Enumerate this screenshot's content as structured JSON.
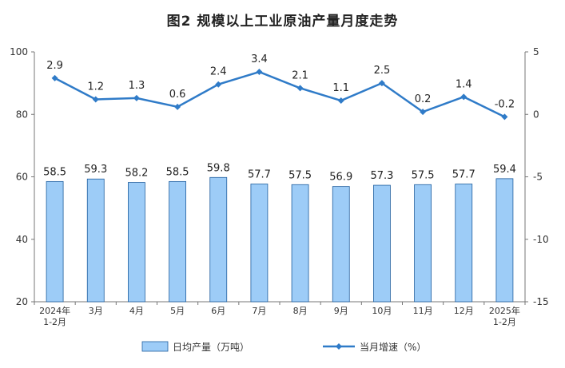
{
  "chart_data": {
    "type": "bar+line",
    "title": "图2  规模以上工业原油产量月度走势",
    "categories": [
      [
        "2024年",
        "1-2月"
      ],
      [
        "3月"
      ],
      [
        "4月"
      ],
      [
        "5月"
      ],
      [
        "6月"
      ],
      [
        "7月"
      ],
      [
        "8月"
      ],
      [
        "9月"
      ],
      [
        "10月"
      ],
      [
        "11月"
      ],
      [
        "12月"
      ],
      [
        "2025年",
        "1-2月"
      ]
    ],
    "series": [
      {
        "name": "日均产量（万吨）",
        "type": "bar",
        "axis": "left",
        "color": "#9DCCF7",
        "values": [
          58.5,
          59.3,
          58.2,
          58.5,
          59.8,
          57.7,
          57.5,
          56.9,
          57.3,
          57.5,
          57.7,
          59.4
        ],
        "labels": [
          "58.5",
          "59.3",
          "58.2",
          "58.5",
          "59.8",
          "57.7",
          "57.5",
          "56.9",
          "57.3",
          "57.5",
          "57.7",
          "59.4"
        ]
      },
      {
        "name": "当月增速（%）",
        "type": "line",
        "axis": "right",
        "color": "#2F7BC8",
        "values": [
          2.9,
          1.2,
          1.3,
          0.6,
          2.4,
          3.4,
          2.1,
          1.1,
          2.5,
          0.2,
          1.4,
          -0.2
        ],
        "labels": [
          "2.9",
          "1.2",
          "1.3",
          "0.6",
          "2.4",
          "3.4",
          "2.1",
          "1.1",
          "2.5",
          "0.2",
          "1.4",
          "-0.2"
        ]
      }
    ],
    "y_left": {
      "range": [
        20,
        100
      ],
      "ticks": [
        "20",
        "40",
        "60",
        "80",
        "100"
      ],
      "tick_values": [
        20,
        40,
        60,
        80,
        100
      ]
    },
    "y_right": {
      "range": [
        -15,
        5
      ],
      "ticks": [
        "-15",
        "-10",
        "-5",
        "0",
        "5"
      ],
      "tick_values": [
        -15,
        -10,
        -5,
        0,
        5
      ]
    },
    "grid": false,
    "legend": "bottom"
  }
}
